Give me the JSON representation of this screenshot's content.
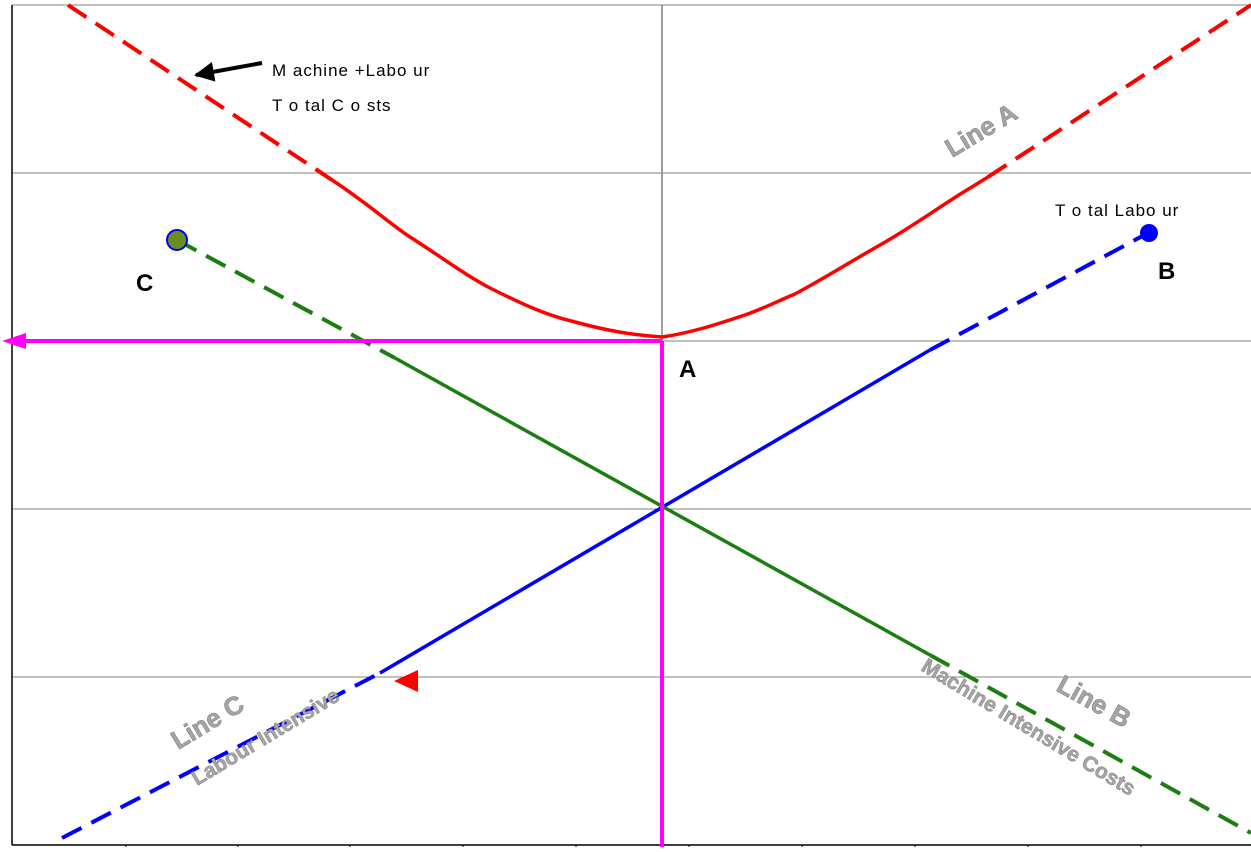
{
  "labels": {
    "machine_labour_line1": "M achine +Labo ur",
    "machine_labour_line2": "T o tal C o sts",
    "total_labour": "T o tal Labo ur",
    "point_a": "A",
    "point_b": "B",
    "point_c": "C",
    "line_a": "Line A",
    "line_b": "Line B",
    "line_c": "Line C",
    "labour_intensive": "Labour Intensive",
    "machine_intensive": "Machine Intensive Costs"
  },
  "colors": {
    "total_cost_curve": "#ff0000",
    "labour_line": "#0000ff",
    "machine_line": "#1e7d12",
    "optimum_marker": "#ff00ff",
    "grid": "#808080",
    "axis": "#000000",
    "label_gray": "#a6a6a6"
  },
  "icons": {
    "leader_arrow": "arrow-left-icon",
    "red_triangle": "triangle-left-icon",
    "point_b_marker": "blue-dot-icon",
    "point_c_marker": "green-dot-icon"
  }
}
